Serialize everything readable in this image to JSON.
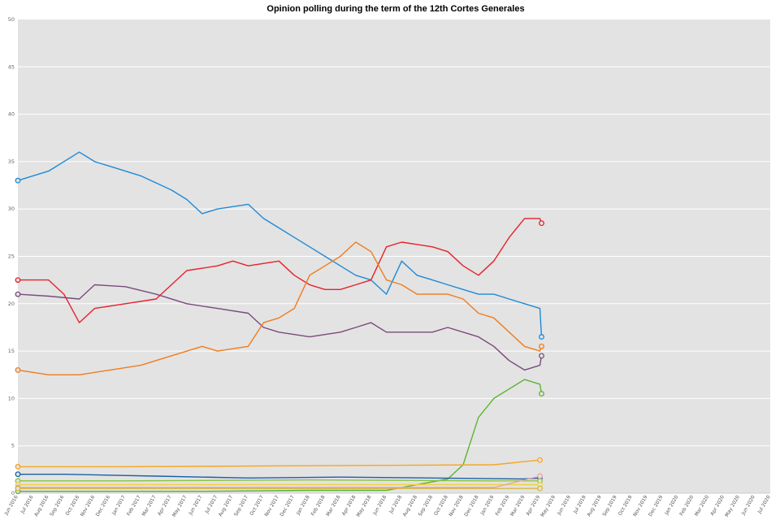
{
  "chart_data": {
    "type": "line",
    "title": "Opinion polling during the term of the 12th Cortes Generales",
    "xlabel": "",
    "ylabel": "",
    "ylim": [
      0,
      50
    ],
    "yticks": [
      0,
      5,
      10,
      15,
      20,
      25,
      30,
      35,
      40,
      45,
      50
    ],
    "grid": true,
    "legend": "none",
    "x_tick_labels": [
      "Jun 2016",
      "Jul 2016",
      "Aug 2016",
      "Sep 2016",
      "Oct 2016",
      "Nov 2016",
      "Dec 2016",
      "Jan 2017",
      "Feb 2017",
      "Mar 2017",
      "Apr 2017",
      "May 2017",
      "Jun 2017",
      "Jul 2017",
      "Aug 2017",
      "Sep 2017",
      "Oct 2017",
      "Nov 2017",
      "Dec 2017",
      "Jan 2018",
      "Feb 2018",
      "Mar 2018",
      "Apr 2018",
      "May 2018",
      "Jun 2018",
      "Jul 2018",
      "Aug 2018",
      "Sep 2018",
      "Oct 2018",
      "Nov 2018",
      "Dec 2018",
      "Jan 2019",
      "Feb 2019",
      "Mar 2019",
      "Apr 2019",
      "May 2019",
      "Jun 2019",
      "Jul 2019",
      "Aug 2019",
      "Sep 2019",
      "Oct 2019",
      "Nov 2019",
      "Dec 2019",
      "Jan 2020",
      "Feb 2020",
      "Mar 2020",
      "Apr 2020",
      "May 2020",
      "Jun 2020",
      "Jul 2020"
    ],
    "series": [
      {
        "color": "#1f8ad6",
        "x": [
          "Jun 2016",
          "Aug 2016",
          "Oct 2016",
          "Nov 2016",
          "Dec 2016",
          "Feb 2017",
          "Apr 2017",
          "May 2017",
          "Jun 2017",
          "Jul 2017",
          "Sep 2017",
          "Oct 2017",
          "Nov 2017",
          "Dec 2017",
          "Jan 2018",
          "Feb 2018",
          "Mar 2018",
          "Apr 2018",
          "May 2018",
          "Jun 2018",
          "Jul 2018",
          "Aug 2018",
          "Sep 2018",
          "Oct 2018",
          "Nov 2018",
          "Dec 2018",
          "Jan 2019",
          "Feb 2019",
          "Mar 2019",
          "Apr 2019",
          "Apr 2019"
        ],
        "values": [
          33.0,
          34.0,
          36.0,
          35.0,
          34.5,
          33.5,
          32.0,
          31.0,
          29.5,
          30.0,
          30.5,
          29.0,
          28.0,
          27.0,
          26.0,
          25.0,
          24.0,
          23.0,
          22.5,
          21.0,
          24.5,
          23.0,
          22.5,
          22.0,
          21.5,
          21.0,
          21.0,
          20.5,
          20.0,
          19.5,
          16.5
        ]
      },
      {
        "color": "#e8212b",
        "x": [
          "Jun 2016",
          "Aug 2016",
          "Sep 2016",
          "Oct 2016",
          "Nov 2016",
          "Jan 2017",
          "Mar 2017",
          "May 2017",
          "Jul 2017",
          "Aug 2017",
          "Sep 2017",
          "Nov 2017",
          "Dec 2017",
          "Jan 2018",
          "Feb 2018",
          "Mar 2018",
          "Apr 2018",
          "May 2018",
          "Jun 2018",
          "Jul 2018",
          "Sep 2018",
          "Oct 2018",
          "Nov 2018",
          "Dec 2018",
          "Jan 2019",
          "Feb 2019",
          "Mar 2019",
          "Apr 2019",
          "Apr 2019"
        ],
        "values": [
          22.5,
          22.5,
          21.0,
          18.0,
          19.5,
          20.0,
          20.5,
          23.5,
          24.0,
          24.5,
          24.0,
          24.5,
          23.0,
          22.0,
          21.5,
          21.5,
          22.0,
          22.5,
          26.0,
          26.5,
          26.0,
          25.5,
          24.0,
          23.0,
          24.5,
          27.0,
          29.0,
          29.0,
          28.5
        ]
      },
      {
        "color": "#7a4b7a",
        "x": [
          "Jun 2016",
          "Aug 2016",
          "Oct 2016",
          "Nov 2016",
          "Jan 2017",
          "Mar 2017",
          "May 2017",
          "Jul 2017",
          "Sep 2017",
          "Oct 2017",
          "Nov 2017",
          "Jan 2018",
          "Mar 2018",
          "Apr 2018",
          "May 2018",
          "Jun 2018",
          "Jul 2018",
          "Sep 2018",
          "Oct 2018",
          "Nov 2018",
          "Dec 2018",
          "Jan 2019",
          "Feb 2019",
          "Mar 2019",
          "Apr 2019",
          "Apr 2019"
        ],
        "values": [
          21.0,
          20.8,
          20.5,
          22.0,
          21.8,
          21.0,
          20.0,
          19.5,
          19.0,
          17.5,
          17.0,
          16.5,
          17.0,
          17.5,
          18.0,
          17.0,
          17.0,
          17.0,
          17.5,
          17.0,
          16.5,
          15.5,
          14.0,
          13.0,
          13.5,
          14.5
        ]
      },
      {
        "color": "#ef7c1f",
        "x": [
          "Jun 2016",
          "Aug 2016",
          "Oct 2016",
          "Dec 2016",
          "Feb 2017",
          "Apr 2017",
          "Jun 2017",
          "Jul 2017",
          "Sep 2017",
          "Oct 2017",
          "Nov 2017",
          "Dec 2017",
          "Jan 2018",
          "Feb 2018",
          "Mar 2018",
          "Apr 2018",
          "May 2018",
          "Jun 2018",
          "Jul 2018",
          "Aug 2018",
          "Sep 2018",
          "Oct 2018",
          "Nov 2018",
          "Dec 2018",
          "Jan 2019",
          "Feb 2019",
          "Mar 2019",
          "Apr 2019",
          "Apr 2019"
        ],
        "values": [
          13.0,
          12.5,
          12.5,
          13.0,
          13.5,
          14.5,
          15.5,
          15.0,
          15.5,
          18.0,
          18.5,
          19.5,
          23.0,
          24.0,
          25.0,
          26.5,
          25.5,
          22.5,
          22.0,
          21.0,
          21.0,
          21.0,
          20.5,
          19.0,
          18.5,
          17.0,
          15.5,
          15.0,
          15.5
        ]
      },
      {
        "color": "#5cb52e",
        "x": [
          "Jun 2016",
          "Sep 2016",
          "Jan 2017",
          "Jun 2017",
          "Jan 2018",
          "Jun 2018",
          "Oct 2018",
          "Nov 2018",
          "Dec 2018",
          "Jan 2019",
          "Feb 2019",
          "Mar 2019",
          "Apr 2019",
          "Apr 2019"
        ],
        "values": [
          0.2,
          0.2,
          0.2,
          0.2,
          0.3,
          0.3,
          1.5,
          3.0,
          8.0,
          10.0,
          11.0,
          12.0,
          11.5,
          10.5
        ]
      },
      {
        "color": "#f6a623",
        "x": [
          "Jun 2016",
          "Jan 2017",
          "Jan 2018",
          "Jan 2019",
          "Apr 2019"
        ],
        "values": [
          2.8,
          2.8,
          2.9,
          3.0,
          3.5
        ]
      },
      {
        "color": "#1b5fa8",
        "x": [
          "Jun 2016",
          "Sep 2016",
          "Mar 2017",
          "Sep 2017",
          "Mar 2018",
          "Sep 2018",
          "Mar 2019",
          "Apr 2019"
        ],
        "values": [
          2.0,
          2.0,
          1.8,
          1.6,
          1.7,
          1.6,
          1.5,
          1.6
        ]
      },
      {
        "color": "#8ac43f",
        "x": [
          "Jun 2016",
          "Jan 2017",
          "Jan 2018",
          "Jan 2019",
          "Apr 2019"
        ],
        "values": [
          1.3,
          1.3,
          1.4,
          1.3,
          1.3
        ]
      },
      {
        "color": "#f4d03f",
        "x": [
          "Jun 2016",
          "Jan 2017",
          "Jan 2018",
          "Jan 2019",
          "Apr 2019"
        ],
        "values": [
          0.9,
          0.9,
          0.9,
          0.9,
          0.9
        ]
      },
      {
        "color": "#e8a0b0",
        "x": [
          "Jun 2016",
          "Jan 2017",
          "Jan 2018",
          "Jan 2019",
          "Apr 2019"
        ],
        "values": [
          0.6,
          0.6,
          0.6,
          0.6,
          1.8
        ]
      },
      {
        "color": "#d4b83a",
        "x": [
          "Jun 2016",
          "Jan 2017",
          "Jan 2018",
          "Jan 2019",
          "Apr 2019"
        ],
        "values": [
          0.5,
          0.5,
          0.5,
          0.5,
          0.5
        ]
      }
    ]
  }
}
